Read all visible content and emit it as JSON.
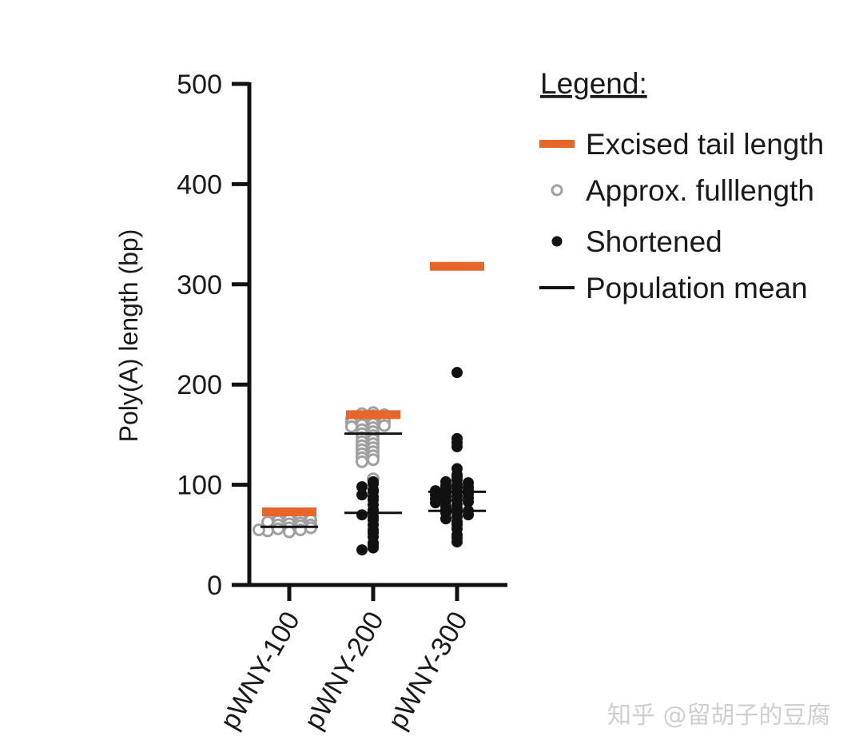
{
  "chart_data": {
    "type": "scatter",
    "ylabel": "Poly(A) length (bp)",
    "xlabel": "",
    "ylim": [
      0,
      500
    ],
    "yticks": [
      0,
      100,
      200,
      300,
      400,
      500
    ],
    "categories": [
      "pWNY-100",
      "pWNY-200",
      "pWNY-300"
    ],
    "legend": {
      "title": "Legend:",
      "placement": "right",
      "entries": [
        {
          "key": "excised",
          "label": "Excised tail length"
        },
        {
          "key": "full",
          "label": "Approx. fulllength"
        },
        {
          "key": "short",
          "label": "Shortened"
        },
        {
          "key": "mean",
          "label": "Population mean"
        }
      ]
    },
    "colors": {
      "excised": "#e8662c",
      "full": "#a0a0a0",
      "short": "#111111",
      "mean": "#111111",
      "axis": "#111111"
    },
    "series": [
      {
        "key": "excised",
        "values": [
          73,
          170,
          318
        ]
      },
      {
        "key": "mean",
        "values": [
          58,
          151,
          93
        ],
        "secondary_values": [
          null,
          72,
          74
        ]
      },
      {
        "key": "full",
        "points": [
          [
            0,
            67
          ],
          [
            0,
            68
          ],
          [
            0,
            66
          ],
          [
            0,
            65
          ],
          [
            0,
            64
          ],
          [
            0,
            62
          ],
          [
            0,
            61
          ],
          [
            0,
            60
          ],
          [
            0,
            59
          ],
          [
            0,
            58
          ],
          [
            0,
            57
          ],
          [
            0,
            56
          ],
          [
            0,
            55
          ],
          [
            0,
            54
          ],
          [
            0,
            53
          ],
          [
            0,
            63
          ],
          [
            0,
            65
          ],
          [
            0,
            60
          ],
          [
            0,
            57
          ],
          [
            0,
            55
          ],
          [
            1,
            172
          ],
          [
            1,
            171
          ],
          [
            1,
            170
          ],
          [
            1,
            169
          ],
          [
            1,
            168
          ],
          [
            1,
            167
          ],
          [
            1,
            166
          ],
          [
            1,
            165
          ],
          [
            1,
            164
          ],
          [
            1,
            163
          ],
          [
            1,
            162
          ],
          [
            1,
            161
          ],
          [
            1,
            160
          ],
          [
            1,
            159
          ],
          [
            1,
            158
          ],
          [
            1,
            157
          ],
          [
            1,
            155
          ],
          [
            1,
            153
          ],
          [
            1,
            151
          ],
          [
            1,
            149
          ],
          [
            1,
            147
          ],
          [
            1,
            145
          ],
          [
            1,
            143
          ],
          [
            1,
            141
          ],
          [
            1,
            139
          ],
          [
            1,
            137
          ],
          [
            1,
            135
          ],
          [
            1,
            133
          ],
          [
            1,
            131
          ],
          [
            1,
            129
          ],
          [
            1,
            127
          ],
          [
            1,
            125
          ],
          [
            1,
            123
          ],
          [
            1,
            106
          ]
        ]
      },
      {
        "key": "short",
        "points": [
          [
            1,
            103
          ],
          [
            1,
            101
          ],
          [
            1,
            98
          ],
          [
            1,
            95
          ],
          [
            1,
            93
          ],
          [
            1,
            90
          ],
          [
            1,
            88
          ],
          [
            1,
            85
          ],
          [
            1,
            80
          ],
          [
            1,
            75
          ],
          [
            1,
            72
          ],
          [
            1,
            70
          ],
          [
            1,
            68
          ],
          [
            1,
            65
          ],
          [
            1,
            60
          ],
          [
            1,
            55
          ],
          [
            1,
            52
          ],
          [
            1,
            48
          ],
          [
            1,
            42
          ],
          [
            1,
            40
          ],
          [
            1,
            37
          ],
          [
            1,
            35
          ],
          [
            2,
            212
          ],
          [
            2,
            146
          ],
          [
            2,
            142
          ],
          [
            2,
            138
          ],
          [
            2,
            116
          ],
          [
            2,
            110
          ],
          [
            2,
            108
          ],
          [
            2,
            105
          ],
          [
            2,
            103
          ],
          [
            2,
            102
          ],
          [
            2,
            100
          ],
          [
            2,
            99
          ],
          [
            2,
            98
          ],
          [
            2,
            97
          ],
          [
            2,
            96
          ],
          [
            2,
            95
          ],
          [
            2,
            94
          ],
          [
            2,
            93
          ],
          [
            2,
            92
          ],
          [
            2,
            91
          ],
          [
            2,
            90
          ],
          [
            2,
            89
          ],
          [
            2,
            88
          ],
          [
            2,
            87
          ],
          [
            2,
            86
          ],
          [
            2,
            85
          ],
          [
            2,
            84
          ],
          [
            2,
            83
          ],
          [
            2,
            82
          ],
          [
            2,
            80
          ],
          [
            2,
            78
          ],
          [
            2,
            76
          ],
          [
            2,
            75
          ],
          [
            2,
            74
          ],
          [
            2,
            73
          ],
          [
            2,
            72
          ],
          [
            2,
            70
          ],
          [
            2,
            68
          ],
          [
            2,
            66
          ],
          [
            2,
            63
          ],
          [
            2,
            60
          ],
          [
            2,
            56
          ],
          [
            2,
            50
          ],
          [
            2,
            47
          ],
          [
            2,
            43
          ]
        ]
      }
    ]
  },
  "watermark": "知乎 @留胡子的豆腐"
}
